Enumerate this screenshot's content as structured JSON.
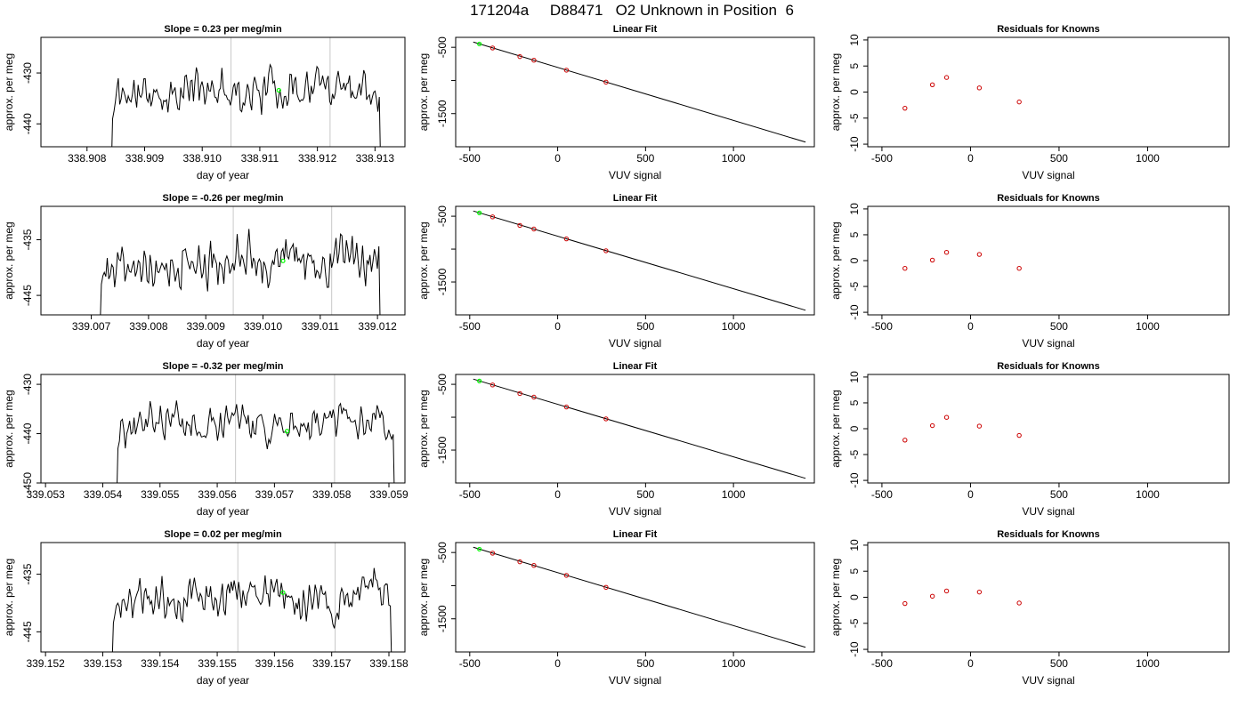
{
  "page_title": "171204a     D88471   O2 Unknown in Position  6",
  "colors": {
    "trace": "#000000",
    "marker_green": "#00ff00",
    "point_red": "#cc0000",
    "vline_gray": "#c8c8c8"
  },
  "chart_data": [
    {
      "type": "line",
      "panel": "time-series-1",
      "title": "Slope =  0.23  per meg/min",
      "xlabel": "day of year",
      "ylabel": "approx. per meg",
      "xlim": [
        338.9072,
        338.91352
      ],
      "ylim": [
        -444.5,
        -423.0
      ],
      "xticks": [
        338.908,
        338.909,
        338.91,
        338.911,
        338.912,
        338.913
      ],
      "xtick_labels": [
        "338.908",
        "338.909",
        "338.910",
        "338.911",
        "338.912",
        "338.913"
      ],
      "yticks": [
        -430,
        -440
      ],
      "ytick_labels": [
        "-430",
        "-440"
      ],
      "x_start": 338.90842,
      "x_end": 338.9131,
      "y_start": -450,
      "y_end": -450,
      "vlines": [
        338.9105,
        338.91222
      ],
      "baseline": -434.5,
      "amplitude": 2.2,
      "trend": 2.5,
      "seed": 11,
      "green_point": {
        "x": 338.91133,
        "y": -433.4
      }
    },
    {
      "type": "scatter",
      "panel": "linear-fit-1",
      "title": "Linear Fit",
      "xlabel": "VUV signal",
      "ylabel": "approx. per meg",
      "xlim": [
        -580,
        1460
      ],
      "ylim": [
        -2000,
        -350
      ],
      "xticks": [
        -500,
        0,
        500,
        1000
      ],
      "xtick_labels": [
        "-500",
        "0",
        "500",
        "1000"
      ],
      "yticks": [
        -500,
        -1000,
        -1500
      ],
      "ytick_labels": [
        "-500",
        "",
        "-1500"
      ],
      "fit_line": {
        "x": [
          -480,
          1410
        ],
        "y": [
          -420,
          -1930
        ]
      },
      "points": [
        {
          "x": -370,
          "y": -510
        },
        {
          "x": -215,
          "y": -640
        },
        {
          "x": -135,
          "y": -695
        },
        {
          "x": 50,
          "y": -845
        },
        {
          "x": 275,
          "y": -1025
        }
      ],
      "green_point": {
        "x": -445,
        "y": -450
      }
    },
    {
      "type": "scatter",
      "panel": "residuals-1",
      "title": "Residuals for Knowns",
      "xlabel": "VUV signal",
      "ylabel": "approx. per meg",
      "xlim": [
        -580,
        1460
      ],
      "ylim": [
        -10.5,
        10.5
      ],
      "xticks": [
        -500,
        0,
        500,
        1000
      ],
      "xtick_labels": [
        "-500",
        "0",
        "500",
        "1000"
      ],
      "yticks": [
        10,
        5,
        0,
        -5,
        -10
      ],
      "ytick_labels": [
        "10",
        "5",
        "0",
        "-5",
        "-10"
      ],
      "points": [
        {
          "x": -370,
          "y": -3.1
        },
        {
          "x": -215,
          "y": 1.4
        },
        {
          "x": -135,
          "y": 2.8
        },
        {
          "x": 50,
          "y": 0.8
        },
        {
          "x": 275,
          "y": -1.9
        }
      ]
    },
    {
      "type": "line",
      "panel": "time-series-2",
      "title": "Slope =  -0.26  per meg/min",
      "xlabel": "day of year",
      "ylabel": "approx. per meg",
      "xlim": [
        339.00612,
        339.01248
      ],
      "ylim": [
        -448.5,
        -429.0
      ],
      "xticks": [
        339.007,
        339.008,
        339.009,
        339.01,
        339.011,
        339.012
      ],
      "xtick_labels": [
        "339.007",
        "339.008",
        "339.009",
        "339.010",
        "339.011",
        "339.012"
      ],
      "yticks": [
        -435,
        -445
      ],
      "ytick_labels": [
        "-435",
        "-445"
      ],
      "x_start": 339.00715,
      "x_end": 339.01205,
      "y_start": -452,
      "y_end": -452,
      "vlines": [
        339.00948,
        339.0112
      ],
      "baseline": -438.5,
      "amplitude": 2.3,
      "trend": 0,
      "seed": 27,
      "green_point": {
        "x": 339.01035,
        "y": -438.8
      }
    },
    {
      "type": "scatter",
      "panel": "linear-fit-2",
      "title": "Linear Fit",
      "xlabel": "VUV signal",
      "ylabel": "approx. per meg",
      "xlim": [
        -580,
        1460
      ],
      "ylim": [
        -2000,
        -350
      ],
      "xticks": [
        -500,
        0,
        500,
        1000
      ],
      "xtick_labels": [
        "-500",
        "0",
        "500",
        "1000"
      ],
      "yticks": [
        -500,
        -1000,
        -1500
      ],
      "ytick_labels": [
        "-500",
        "",
        "-1500"
      ],
      "fit_line": {
        "x": [
          -480,
          1410
        ],
        "y": [
          -420,
          -1930
        ]
      },
      "points": [
        {
          "x": -370,
          "y": -510
        },
        {
          "x": -215,
          "y": -640
        },
        {
          "x": -135,
          "y": -695
        },
        {
          "x": 50,
          "y": -845
        },
        {
          "x": 275,
          "y": -1025
        }
      ],
      "green_point": {
        "x": -445,
        "y": -450
      }
    },
    {
      "type": "scatter",
      "panel": "residuals-2",
      "title": "Residuals for Knowns",
      "xlabel": "VUV signal",
      "ylabel": "approx. per meg",
      "xlim": [
        -580,
        1460
      ],
      "ylim": [
        -10.5,
        10.5
      ],
      "xticks": [
        -500,
        0,
        500,
        1000
      ],
      "xtick_labels": [
        "-500",
        "0",
        "500",
        "1000"
      ],
      "yticks": [
        10,
        5,
        0,
        -5,
        -10
      ],
      "ytick_labels": [
        "10",
        "5",
        "0",
        "-5",
        "-10"
      ],
      "points": [
        {
          "x": -370,
          "y": -1.5
        },
        {
          "x": -215,
          "y": 0.1
        },
        {
          "x": -135,
          "y": 1.6
        },
        {
          "x": 50,
          "y": 1.2
        },
        {
          "x": 275,
          "y": -1.5
        }
      ]
    },
    {
      "type": "line",
      "panel": "time-series-3",
      "title": "Slope =  -0.32  per meg/min",
      "xlabel": "day of year",
      "ylabel": "approx. per meg",
      "xlim": [
        339.05292,
        339.05928
      ],
      "ylim": [
        -450.0,
        -428.0
      ],
      "xticks": [
        339.053,
        339.054,
        339.055,
        339.056,
        339.057,
        339.058,
        339.059
      ],
      "xtick_labels": [
        "339.053",
        "339.054",
        "339.055",
        "339.056",
        "339.057",
        "339.058",
        "339.059"
      ],
      "yticks": [
        -430,
        -440,
        -450
      ],
      "ytick_labels": [
        "-430",
        "-440",
        "-450"
      ],
      "x_start": 339.05424,
      "x_end": 339.0591,
      "y_start": -455,
      "y_end": -455,
      "vlines": [
        339.05632,
        339.05805
      ],
      "baseline": -438.5,
      "amplitude": 2.0,
      "trend": 0,
      "seed": 43,
      "green_point": {
        "x": 339.05722,
        "y": -439.5
      }
    },
    {
      "type": "scatter",
      "panel": "linear-fit-3",
      "title": "Linear Fit",
      "xlabel": "VUV signal",
      "ylabel": "approx. per meg",
      "xlim": [
        -580,
        1460
      ],
      "ylim": [
        -2000,
        -350
      ],
      "xticks": [
        -500,
        0,
        500,
        1000
      ],
      "xtick_labels": [
        "-500",
        "0",
        "500",
        "1000"
      ],
      "yticks": [
        -500,
        -1000,
        -1500
      ],
      "ytick_labels": [
        "-500",
        "",
        "-1500"
      ],
      "fit_line": {
        "x": [
          -480,
          1410
        ],
        "y": [
          -420,
          -1930
        ]
      },
      "points": [
        {
          "x": -370,
          "y": -510
        },
        {
          "x": -215,
          "y": -640
        },
        {
          "x": -135,
          "y": -695
        },
        {
          "x": 50,
          "y": -845
        },
        {
          "x": 275,
          "y": -1025
        }
      ],
      "green_point": {
        "x": -445,
        "y": -450
      }
    },
    {
      "type": "scatter",
      "panel": "residuals-3",
      "title": "Residuals for Knowns",
      "xlabel": "VUV signal",
      "ylabel": "approx. per meg",
      "xlim": [
        -580,
        1460
      ],
      "ylim": [
        -10.5,
        10.5
      ],
      "xticks": [
        -500,
        0,
        500,
        1000
      ],
      "xtick_labels": [
        "-500",
        "0",
        "500",
        "1000"
      ],
      "yticks": [
        10,
        5,
        0,
        -5,
        -10
      ],
      "ytick_labels": [
        "10",
        "5",
        "0",
        "-5",
        "-10"
      ],
      "points": [
        {
          "x": -370,
          "y": -2.2
        },
        {
          "x": -215,
          "y": 0.6
        },
        {
          "x": -135,
          "y": 2.2
        },
        {
          "x": 50,
          "y": 0.5
        },
        {
          "x": 275,
          "y": -1.3
        }
      ]
    },
    {
      "type": "line",
      "panel": "time-series-4",
      "title": "Slope =  0.02  per meg/min",
      "xlabel": "day of year",
      "ylabel": "approx. per meg",
      "xlim": [
        339.15192,
        339.15828
      ],
      "ylim": [
        -448.5,
        -429.5
      ],
      "xticks": [
        339.152,
        339.153,
        339.154,
        339.155,
        339.156,
        339.157,
        339.158
      ],
      "xtick_labels": [
        "339.152",
        "339.153",
        "339.154",
        "339.155",
        "339.156",
        "339.157",
        "339.158"
      ],
      "yticks": [
        -435,
        -445
      ],
      "ytick_labels": [
        "-435",
        "-445"
      ],
      "x_start": 339.15316,
      "x_end": 339.15805,
      "y_start": -452,
      "y_end": -452,
      "vlines": [
        339.15536,
        339.15706
      ],
      "baseline": -439.0,
      "amplitude": 2.0,
      "trend": 0.8,
      "seed": 59,
      "green_point": {
        "x": 339.15615,
        "y": -438.2
      }
    },
    {
      "type": "scatter",
      "panel": "linear-fit-4",
      "title": "Linear Fit",
      "xlabel": "VUV signal",
      "ylabel": "approx. per meg",
      "xlim": [
        -580,
        1460
      ],
      "ylim": [
        -2000,
        -350
      ],
      "xticks": [
        -500,
        0,
        500,
        1000
      ],
      "xtick_labels": [
        "-500",
        "0",
        "500",
        "1000"
      ],
      "yticks": [
        -500,
        -1000,
        -1500
      ],
      "ytick_labels": [
        "-500",
        "",
        "-1500"
      ],
      "fit_line": {
        "x": [
          -480,
          1410
        ],
        "y": [
          -420,
          -1930
        ]
      },
      "points": [
        {
          "x": -370,
          "y": -510
        },
        {
          "x": -215,
          "y": -640
        },
        {
          "x": -135,
          "y": -695
        },
        {
          "x": 50,
          "y": -845
        },
        {
          "x": 275,
          "y": -1025
        }
      ],
      "green_point": {
        "x": -445,
        "y": -450
      }
    },
    {
      "type": "scatter",
      "panel": "residuals-4",
      "title": "Residuals for Knowns",
      "xlabel": "VUV signal",
      "ylabel": "approx. per meg",
      "xlim": [
        -580,
        1460
      ],
      "ylim": [
        -10.5,
        10.5
      ],
      "xticks": [
        -500,
        0,
        500,
        1000
      ],
      "xtick_labels": [
        "-500",
        "0",
        "500",
        "1000"
      ],
      "yticks": [
        10,
        5,
        0,
        -5,
        -10
      ],
      "ytick_labels": [
        "10",
        "5",
        "0",
        "-5",
        "-10"
      ],
      "points": [
        {
          "x": -370,
          "y": -1.2
        },
        {
          "x": -215,
          "y": 0.2
        },
        {
          "x": -135,
          "y": 1.2
        },
        {
          "x": 50,
          "y": 1.0
        },
        {
          "x": 275,
          "y": -1.1
        }
      ]
    }
  ]
}
